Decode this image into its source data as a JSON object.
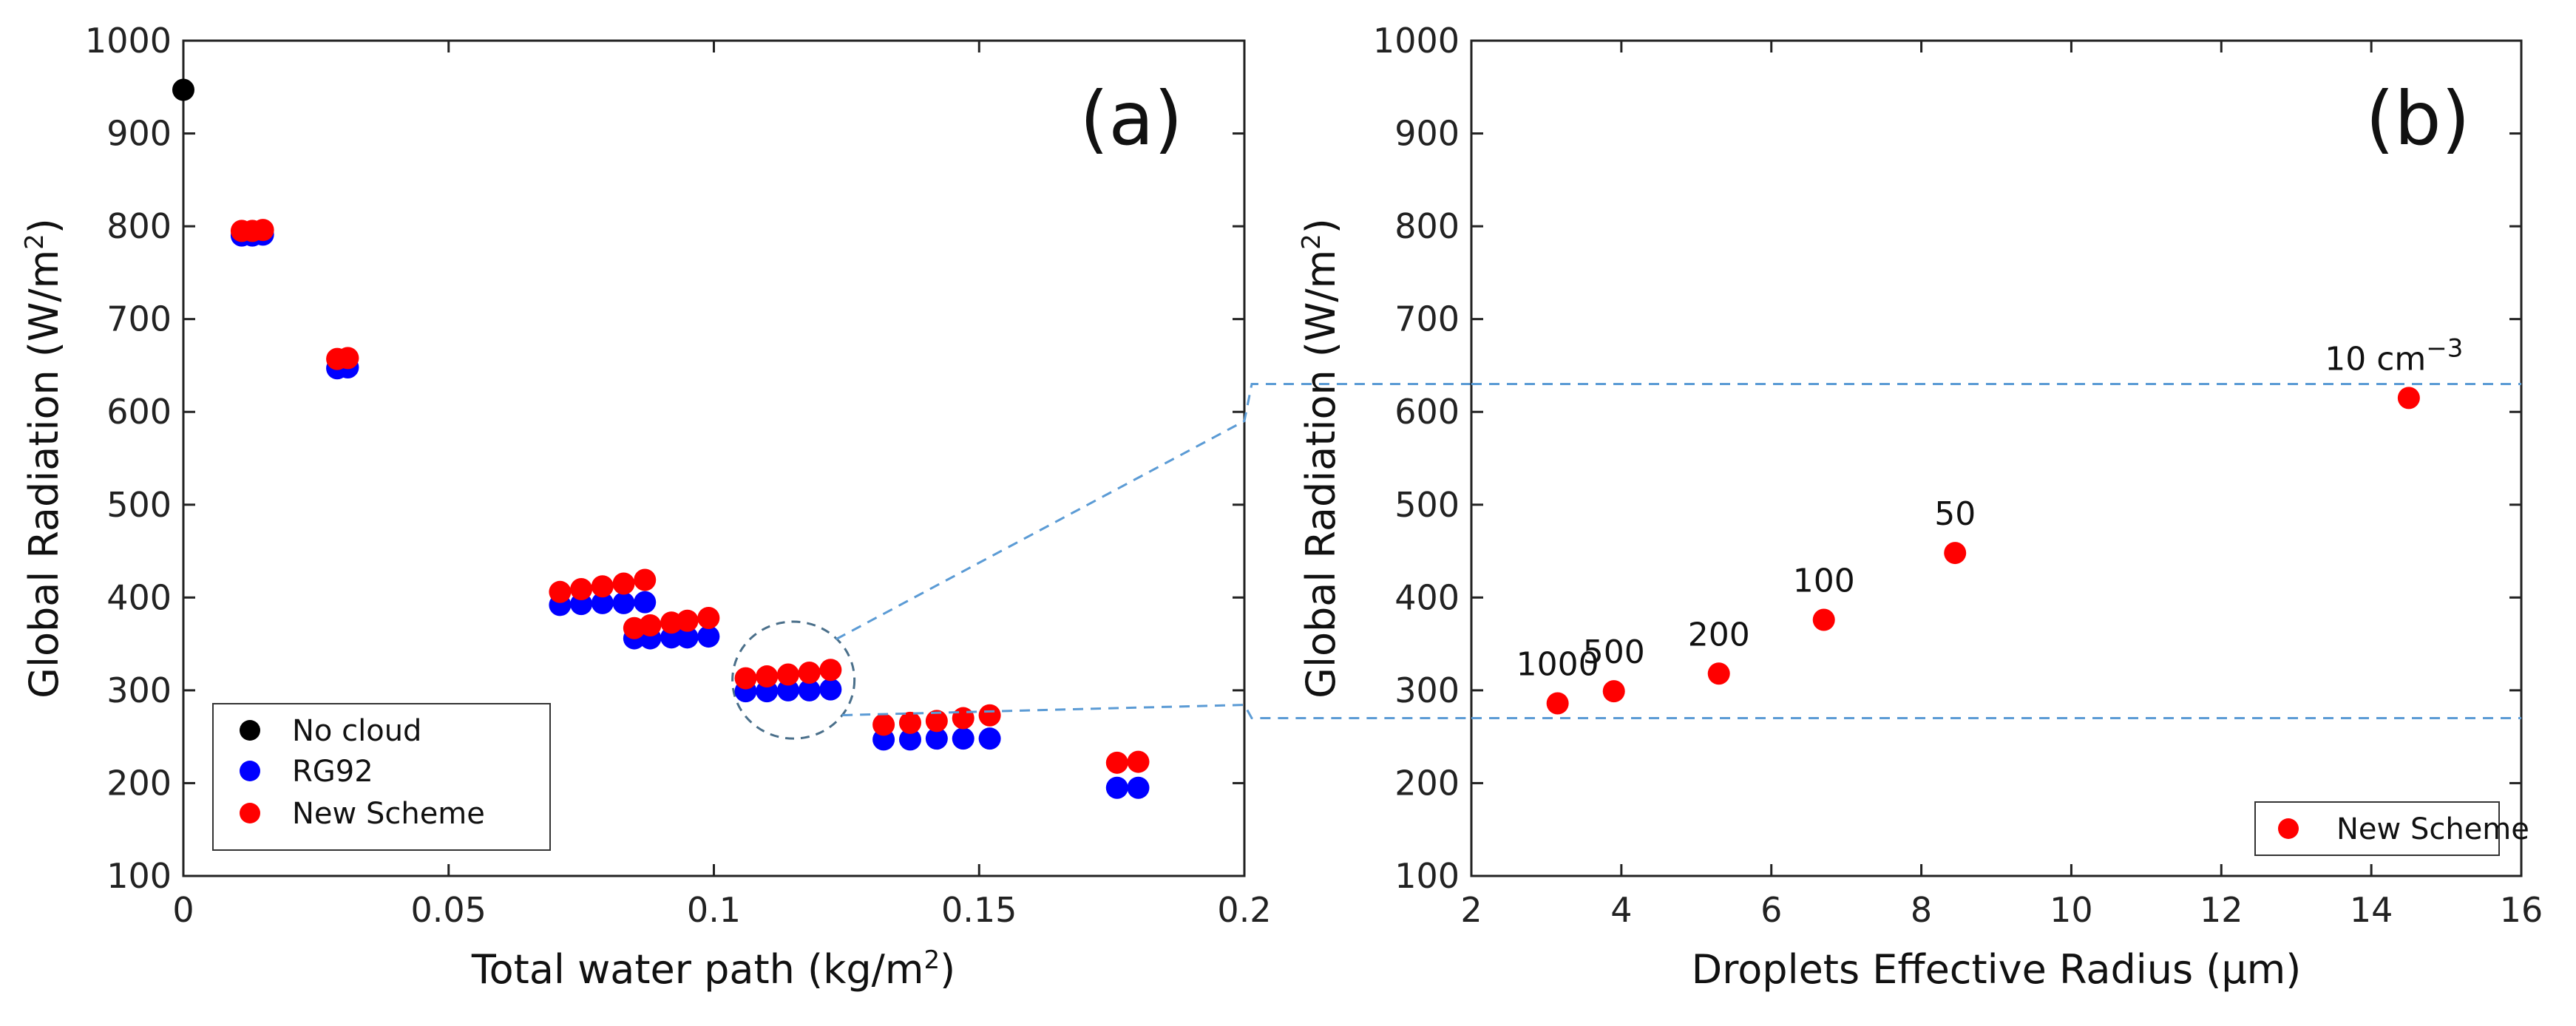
{
  "colors": {
    "no_cloud": "#000000",
    "rg92": "#0000ff",
    "new_scheme": "#ff0000",
    "zoom_guides": "#5b9bd5",
    "axis": "#222222"
  },
  "chart_data": [
    {
      "id": "a",
      "type": "scatter",
      "panel_label": "(a)",
      "xlabel": "Total water path (kg/m",
      "xlabel_sup": "2",
      "xlabel_tail": ")",
      "ylabel": "Global Radiation (W/m",
      "ylabel_sup": "2",
      "ylabel_tail": ")",
      "xlim": [
        0,
        0.2
      ],
      "ylim": [
        100,
        1000
      ],
      "xticks": [
        0,
        0.05,
        0.1,
        0.15,
        0.2
      ],
      "xtick_labels": [
        "0",
        "0.05",
        "0.1",
        "0.15",
        "0.2"
      ],
      "yticks": [
        100,
        200,
        300,
        400,
        500,
        600,
        700,
        800,
        900,
        1000
      ],
      "ytick_labels": [
        "100",
        "200",
        "300",
        "400",
        "500",
        "600",
        "700",
        "800",
        "900",
        "1000"
      ],
      "grid": false,
      "legend_position": "bottom-left",
      "series": [
        {
          "name": "No cloud",
          "key": "no_cloud",
          "x": [
            0
          ],
          "y": [
            947
          ]
        },
        {
          "name": "RG92",
          "key": "rg92",
          "x": [
            0.011,
            0.013,
            0.015,
            0.029,
            0.031,
            0.071,
            0.075,
            0.079,
            0.083,
            0.087,
            0.085,
            0.088,
            0.092,
            0.095,
            0.099,
            0.106,
            0.11,
            0.114,
            0.118,
            0.122,
            0.132,
            0.137,
            0.142,
            0.147,
            0.152,
            0.176,
            0.18
          ],
          "y": [
            790,
            790,
            791,
            647,
            648,
            392,
            393,
            394,
            394,
            395,
            356,
            356,
            357,
            357,
            358,
            299,
            299,
            300,
            300,
            301,
            247,
            247,
            248,
            248,
            248,
            195,
            195
          ]
        },
        {
          "name": "New Scheme",
          "key": "new_scheme",
          "x": [
            0.011,
            0.013,
            0.015,
            0.029,
            0.031,
            0.071,
            0.075,
            0.079,
            0.083,
            0.087,
            0.085,
            0.088,
            0.092,
            0.095,
            0.099,
            0.106,
            0.11,
            0.114,
            0.118,
            0.122,
            0.132,
            0.137,
            0.142,
            0.147,
            0.152,
            0.176,
            0.18
          ],
          "y": [
            795,
            795,
            796,
            657,
            658,
            406,
            409,
            412,
            415,
            419,
            367,
            370,
            373,
            375,
            378,
            313,
            315,
            317,
            319,
            322,
            263,
            265,
            267,
            270,
            273,
            222,
            223
          ]
        }
      ],
      "annotations": [
        {
          "type": "ellipse",
          "cx": 0.115,
          "cy": 311,
          "rx": 0.0115,
          "ry": 63
        }
      ]
    },
    {
      "id": "b",
      "type": "scatter",
      "panel_label": "(b)",
      "xlabel": "Droplets Effective Radius (μm)",
      "ylabel": "Global Radiation (W/m",
      "ylabel_sup": "2",
      "ylabel_tail": ")",
      "xlim": [
        2,
        16
      ],
      "ylim": [
        100,
        1000
      ],
      "xticks": [
        2,
        4,
        6,
        8,
        10,
        12,
        14,
        16
      ],
      "xtick_labels": [
        "2",
        "4",
        "6",
        "8",
        "10",
        "12",
        "14",
        "16"
      ],
      "yticks": [
        100,
        200,
        300,
        400,
        500,
        600,
        700,
        800,
        900,
        1000
      ],
      "ytick_labels": [
        "100",
        "200",
        "300",
        "400",
        "500",
        "600",
        "700",
        "800",
        "900",
        "1000"
      ],
      "grid": false,
      "legend_position": "bottom-right",
      "series": [
        {
          "name": "New Scheme",
          "key": "new_scheme",
          "x": [
            3.15,
            3.9,
            5.3,
            6.7,
            8.45,
            14.5
          ],
          "y": [
            286,
            299,
            318,
            376,
            448,
            615
          ]
        }
      ],
      "point_labels": [
        "1000",
        "500",
        "200",
        "100",
        "50",
        "10 cm"
      ],
      "last_label_sup": "−3",
      "reference_lines_y": [
        630,
        270
      ]
    }
  ]
}
